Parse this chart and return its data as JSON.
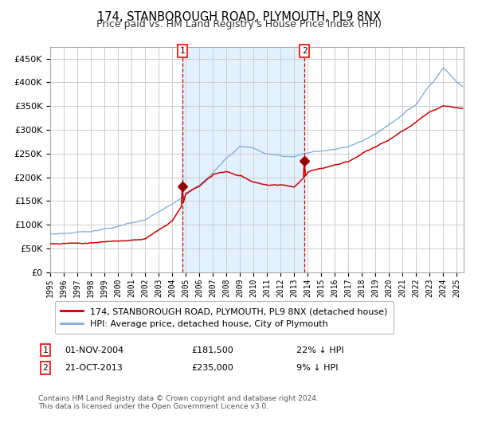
{
  "title": "174, STANBOROUGH ROAD, PLYMOUTH, PL9 8NX",
  "subtitle": "Price paid vs. HM Land Registry's House Price Index (HPI)",
  "hpi_color": "#7aaadd",
  "price_color": "#cc0000",
  "marker_color": "#990000",
  "bg_shade_color": "#ddeeff",
  "vline_color": "#cc0000",
  "grid_color": "#cccccc",
  "sale1_year": 2004.833,
  "sale1_price": 181500,
  "sale2_year": 2013.792,
  "sale2_price": 235000,
  "legend1": "174, STANBOROUGH ROAD, PLYMOUTH, PL9 8NX (detached house)",
  "legend2": "HPI: Average price, detached house, City of Plymouth",
  "note1_date": "01-NOV-2004",
  "note1_price": "£181,500",
  "note1_pct": "22% ↓ HPI",
  "note2_date": "21-OCT-2013",
  "note2_price": "£235,000",
  "note2_pct": "9% ↓ HPI",
  "footer": "Contains HM Land Registry data © Crown copyright and database right 2024.\nThis data is licensed under the Open Government Licence v3.0.",
  "ylim": [
    0,
    475000
  ],
  "yticks": [
    0,
    50000,
    100000,
    150000,
    200000,
    250000,
    300000,
    350000,
    400000,
    450000
  ],
  "start_year": 1995,
  "end_year": 2025
}
